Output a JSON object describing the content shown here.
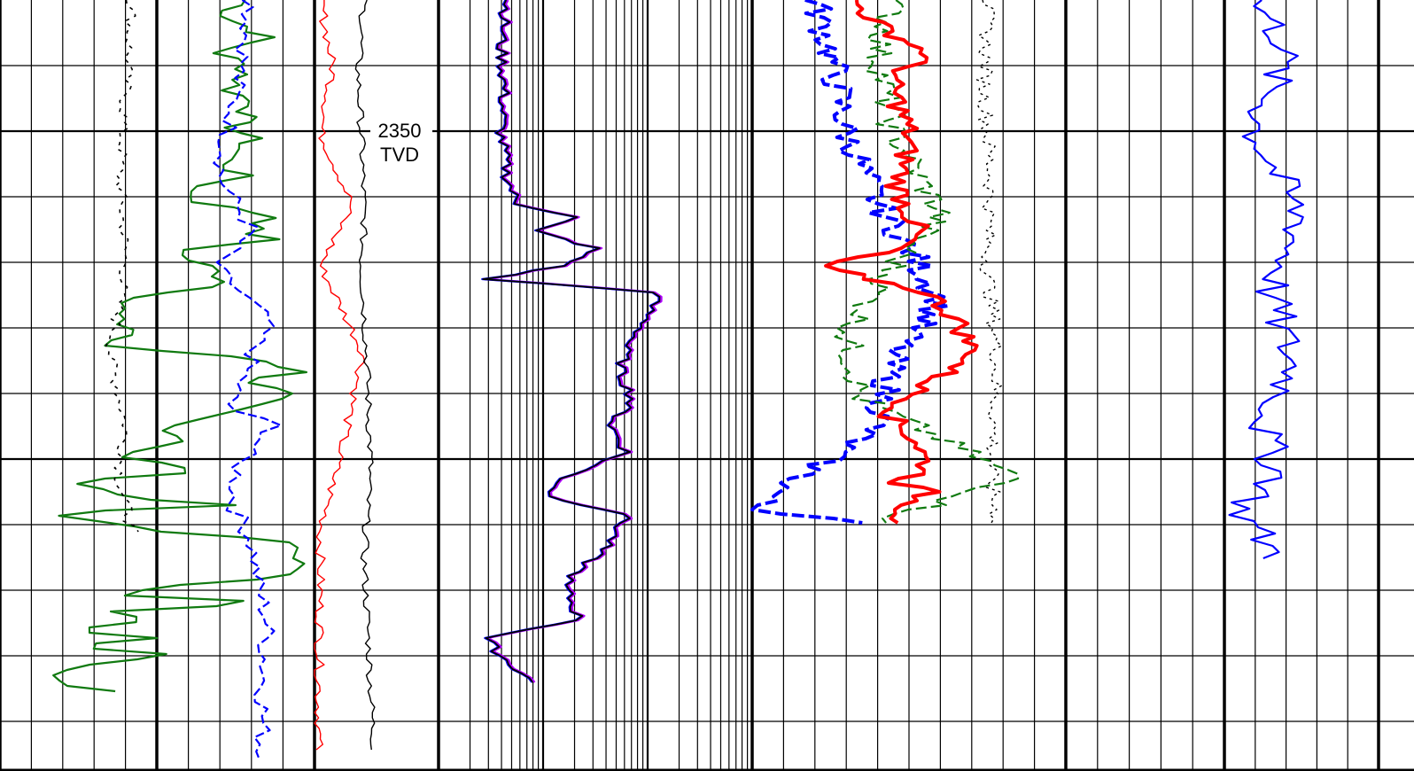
{
  "depth_annotation": {
    "value": "2350",
    "unit": "TVD"
  },
  "colors": {
    "green": "#107a10",
    "blue": "#0000ff",
    "black": "#000000",
    "red": "#ff0000",
    "purple": "#b000ff",
    "grid": "#000000"
  },
  "chart_data": {
    "type": "line",
    "title": "",
    "depth_axis": {
      "marked_depth": 2350,
      "unit": "TVD"
    },
    "tracks": [
      {
        "name": "",
        "scale": "linear",
        "series": [
          {
            "color": "green",
            "style": "solid",
            "x": [
              0.78,
              0.72,
              0.85,
              0.7,
              0.8,
              0.73,
              0.82,
              0.74,
              0.8,
              0.72,
              0.76,
              0.6,
              0.65,
              0.9,
              0.78,
              0.85,
              0.55,
              0.65,
              0.75,
              0.4,
              0.35,
              0.45,
              0.3,
              0.85,
              0.95,
              0.8,
              0.9,
              0.75,
              0.55,
              0.6,
              0.35,
              0.65,
              0.25,
              0.4,
              0.7,
              0.1,
              0.35,
              0.55,
              0.85,
              1.0,
              0.95,
              0.9,
              0.6,
              0.3,
              0.95,
              0.4,
              0.45,
              0.2,
              0.5,
              0.25,
              0.6,
              0.3,
              0.2,
              0.15,
              0.4
            ],
            "y": [
              0,
              20,
              40,
              60,
              80,
              100,
              120,
              140,
              160,
              180,
              200,
              215,
              230,
              245,
              260,
              270,
              285,
              300,
              320,
              340,
              360,
              375,
              390,
              405,
              420,
              430,
              445,
              460,
              480,
              500,
              515,
              530,
              545,
              560,
              570,
              580,
              590,
              600,
              610,
              620,
              635,
              650,
              660,
              670,
              680,
              690,
              700,
              710,
              720,
              730,
              740,
              750,
              760,
              770,
              780
            ]
          }
        ]
      },
      {
        "name": "",
        "scale": "log",
        "series": [
          {
            "color": "black",
            "style": "solid",
            "x": [
              0.22,
              0.2,
              0.21,
              0.2,
              0.22,
              0.25,
              0.45,
              0.3,
              0.5,
              0.4,
              0.15,
              0.7,
              0.65,
              0.6,
              0.58,
              0.62,
              0.55,
              0.6,
              0.4,
              0.35,
              0.6,
              0.55,
              0.4,
              0.45,
              0.15,
              0.2,
              0.3
            ],
            "y": [
              0,
              50,
              100,
              150,
              200,
              230,
              245,
              260,
              280,
              300,
              315,
              330,
              370,
              390,
              420,
              450,
              480,
              510,
              540,
              560,
              580,
              610,
              660,
              700,
              720,
              740,
              770
            ]
          }
        ]
      },
      {
        "name": "",
        "scale": "linear",
        "series": [
          {
            "color": "red",
            "style": "solid",
            "x": [
              0.2,
              0.35,
              0.6,
              0.4,
              0.45,
              0.5,
              0.48,
              0.44,
              0.5,
              0.55,
              0.45,
              0.0,
              0.6,
              0.75,
              0.85,
              0.7,
              0.55,
              0.4,
              0.55,
              0.6,
              0.45,
              0.6,
              0.5,
              0.45,
              0.55,
              0.6,
              0.4,
              0.75,
              0.7,
              0.65,
              0.8,
              0.85,
              0.7,
              0.68,
              0.66
            ],
            "y": [
              0,
              30,
              60,
              90,
              120,
              150,
              180,
              210,
              240,
              260,
              280,
              300,
              330,
              360,
              400,
              420,
              440,
              470,
              500,
              530,
              545,
              555,
              570,
              585,
              600,
              620,
              640,
              660,
              680,
              700,
              720,
              740,
              760,
              780,
              590
            ]
          }
        ]
      }
    ]
  }
}
